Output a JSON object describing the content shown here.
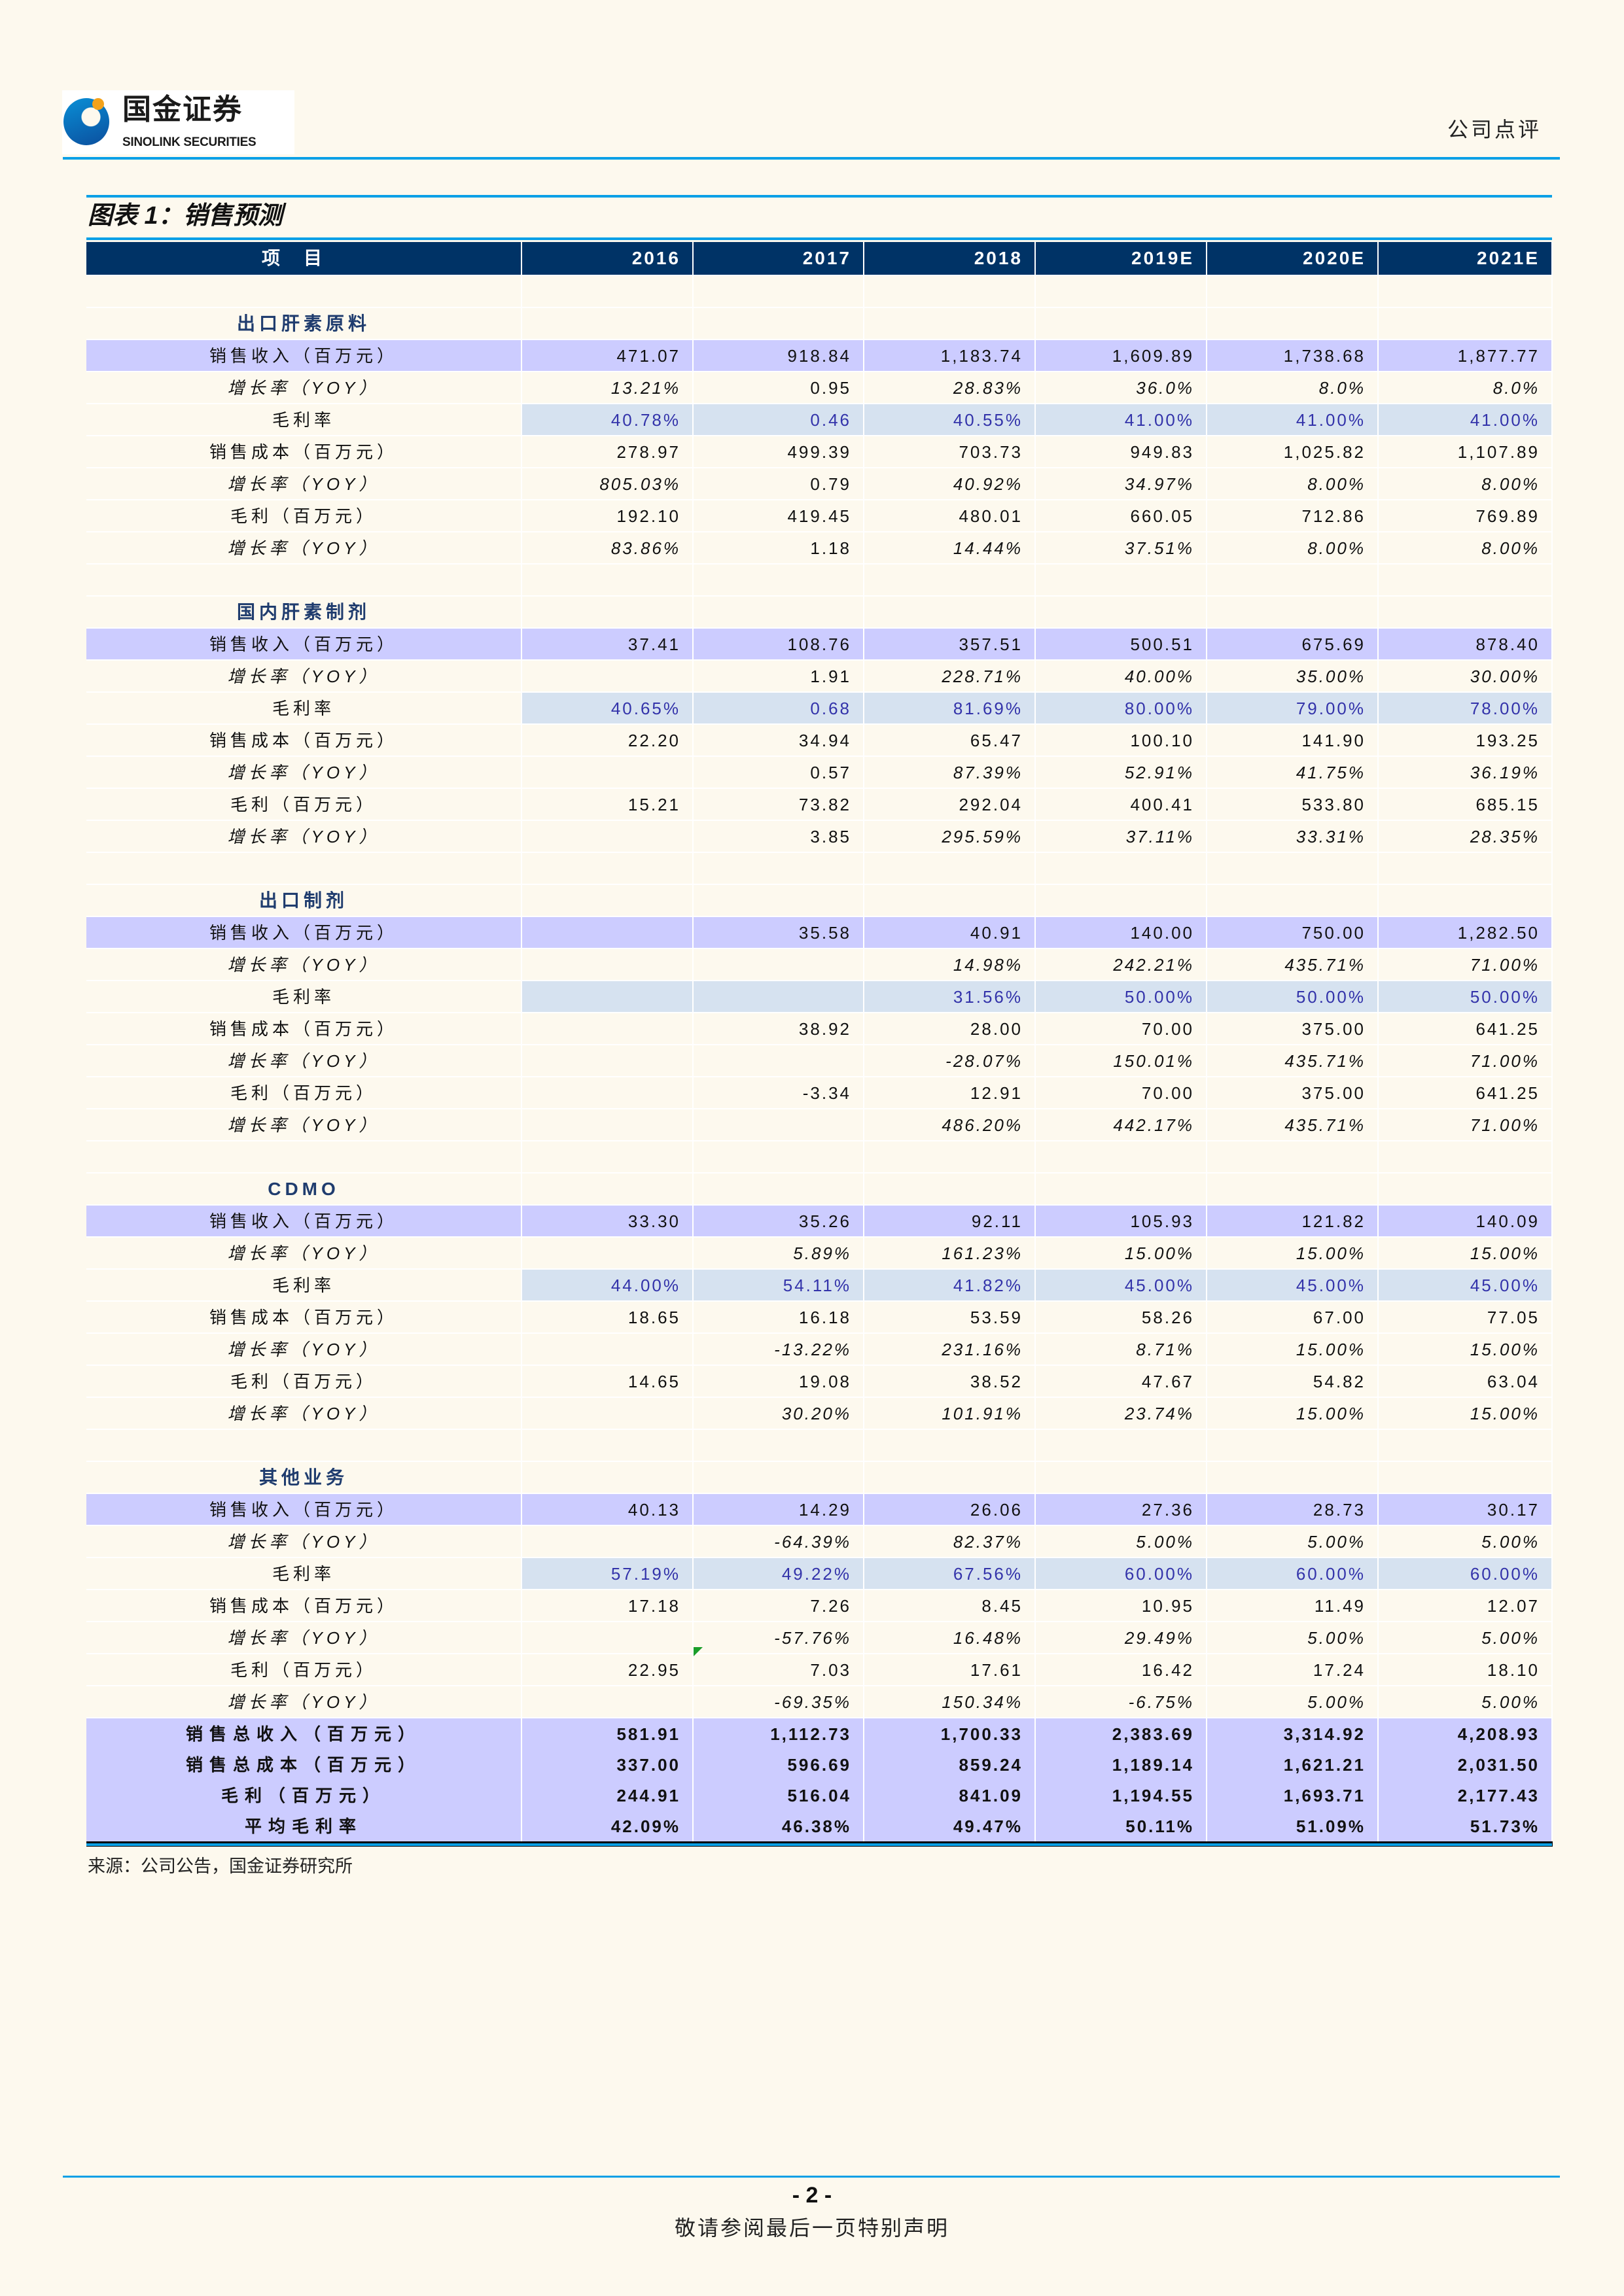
{
  "header": {
    "logo_cn": "国金证券",
    "logo_en": "SINOLINK SECURITIES",
    "doc_type": "公司点评"
  },
  "figure_title": "图表 1：销售预测",
  "table": {
    "columns": [
      "项目",
      "2016",
      "2017",
      "2018",
      "2019E",
      "2020E",
      "2021E"
    ],
    "sections": [
      {
        "title": "出口肝素原料",
        "rows": [
          {
            "label": "销售收入（百万元）",
            "kind": "rev",
            "values": [
              "471.07",
              "918.84",
              "1,183.74",
              "1,609.89",
              "1,738.68",
              "1,877.77"
            ]
          },
          {
            "label": "增长率（YOY）",
            "kind": "yoy",
            "values": [
              "13.21%",
              "0.95",
              "28.83%",
              "36.0%",
              "8.0%",
              "8.0%"
            ]
          },
          {
            "label": "毛利率",
            "kind": "gm",
            "values": [
              "40.78%",
              "0.46",
              "40.55%",
              "41.00%",
              "41.00%",
              "41.00%"
            ]
          },
          {
            "label": "销售成本（百万元）",
            "kind": "n",
            "values": [
              "278.97",
              "499.39",
              "703.73",
              "949.83",
              "1,025.82",
              "1,107.89"
            ]
          },
          {
            "label": "增长率（YOY）",
            "kind": "yoy",
            "values": [
              "805.03%",
              "0.79",
              "40.92%",
              "34.97%",
              "8.00%",
              "8.00%"
            ]
          },
          {
            "label": "毛利（百万元）",
            "kind": "n",
            "values": [
              "192.10",
              "419.45",
              "480.01",
              "660.05",
              "712.86",
              "769.89"
            ]
          },
          {
            "label": "增长率（YOY）",
            "kind": "yoy",
            "values": [
              "83.86%",
              "1.18",
              "14.44%",
              "37.51%",
              "8.00%",
              "8.00%"
            ]
          }
        ]
      },
      {
        "title": "国内肝素制剂",
        "rows": [
          {
            "label": "销售收入（百万元）",
            "kind": "rev",
            "values": [
              "37.41",
              "108.76",
              "357.51",
              "500.51",
              "675.69",
              "878.40"
            ]
          },
          {
            "label": "增长率（YOY）",
            "kind": "yoy",
            "values": [
              "",
              "1.91",
              "228.71%",
              "40.00%",
              "35.00%",
              "30.00%"
            ]
          },
          {
            "label": "毛利率",
            "kind": "gm",
            "values": [
              "40.65%",
              "0.68",
              "81.69%",
              "80.00%",
              "79.00%",
              "78.00%"
            ]
          },
          {
            "label": "销售成本（百万元）",
            "kind": "n",
            "values": [
              "22.20",
              "34.94",
              "65.47",
              "100.10",
              "141.90",
              "193.25"
            ]
          },
          {
            "label": "增长率（YOY）",
            "kind": "yoy",
            "values": [
              "",
              "0.57",
              "87.39%",
              "52.91%",
              "41.75%",
              "36.19%"
            ]
          },
          {
            "label": "毛利（百万元）",
            "kind": "n",
            "values": [
              "15.21",
              "73.82",
              "292.04",
              "400.41",
              "533.80",
              "685.15"
            ]
          },
          {
            "label": "增长率（YOY）",
            "kind": "yoy",
            "values": [
              "",
              "3.85",
              "295.59%",
              "37.11%",
              "33.31%",
              "28.35%"
            ]
          }
        ]
      },
      {
        "title": "出口制剂",
        "rows": [
          {
            "label": "销售收入（百万元）",
            "kind": "rev",
            "values": [
              "",
              "35.58",
              "40.91",
              "140.00",
              "750.00",
              "1,282.50"
            ]
          },
          {
            "label": "增长率（YOY）",
            "kind": "yoy",
            "values": [
              "",
              "",
              "14.98%",
              "242.21%",
              "435.71%",
              "71.00%"
            ]
          },
          {
            "label": "毛利率",
            "kind": "gm",
            "values": [
              "",
              "",
              "31.56%",
              "50.00%",
              "50.00%",
              "50.00%"
            ]
          },
          {
            "label": "销售成本（百万元）",
            "kind": "n",
            "values": [
              "",
              "38.92",
              "28.00",
              "70.00",
              "375.00",
              "641.25"
            ]
          },
          {
            "label": "增长率（YOY）",
            "kind": "yoy",
            "values": [
              "",
              "",
              "-28.07%",
              "150.01%",
              "435.71%",
              "71.00%"
            ]
          },
          {
            "label": "毛利（百万元）",
            "kind": "n",
            "values": [
              "",
              "-3.34",
              "12.91",
              "70.00",
              "375.00",
              "641.25"
            ]
          },
          {
            "label": "增长率（YOY）",
            "kind": "yoy",
            "values": [
              "",
              "",
              "486.20%",
              "442.17%",
              "435.71%",
              "71.00%"
            ]
          }
        ]
      },
      {
        "title": "CDMO",
        "rows": [
          {
            "label": "销售收入（百万元）",
            "kind": "rev",
            "values": [
              "33.30",
              "35.26",
              "92.11",
              "105.93",
              "121.82",
              "140.09"
            ]
          },
          {
            "label": "增长率（YOY）",
            "kind": "yoy",
            "values": [
              "",
              "5.89%",
              "161.23%",
              "15.00%",
              "15.00%",
              "15.00%"
            ]
          },
          {
            "label": "毛利率",
            "kind": "gm",
            "values": [
              "44.00%",
              "54.11%",
              "41.82%",
              "45.00%",
              "45.00%",
              "45.00%"
            ]
          },
          {
            "label": "销售成本（百万元）",
            "kind": "n",
            "values": [
              "18.65",
              "16.18",
              "53.59",
              "58.26",
              "67.00",
              "77.05"
            ]
          },
          {
            "label": "增长率（YOY）",
            "kind": "yoy",
            "values": [
              "",
              "-13.22%",
              "231.16%",
              "8.71%",
              "15.00%",
              "15.00%"
            ]
          },
          {
            "label": "毛利（百万元）",
            "kind": "n",
            "values": [
              "14.65",
              "19.08",
              "38.52",
              "47.67",
              "54.82",
              "63.04"
            ]
          },
          {
            "label": "增长率（YOY）",
            "kind": "yoy",
            "values": [
              "",
              "30.20%",
              "101.91%",
              "23.74%",
              "15.00%",
              "15.00%"
            ]
          }
        ]
      },
      {
        "title": "其他业务",
        "rows": [
          {
            "label": "销售收入（百万元）",
            "kind": "rev",
            "values": [
              "40.13",
              "14.29",
              "26.06",
              "27.36",
              "28.73",
              "30.17"
            ]
          },
          {
            "label": "增长率（YOY）",
            "kind": "yoy",
            "values": [
              "",
              "-64.39%",
              "82.37%",
              "5.00%",
              "5.00%",
              "5.00%"
            ]
          },
          {
            "label": "毛利率",
            "kind": "gm",
            "values": [
              "57.19%",
              "49.22%",
              "67.56%",
              "60.00%",
              "60.00%",
              "60.00%"
            ]
          },
          {
            "label": "销售成本（百万元）",
            "kind": "n",
            "values": [
              "17.18",
              "7.26",
              "8.45",
              "10.95",
              "11.49",
              "12.07"
            ]
          },
          {
            "label": "增长率（YOY）",
            "kind": "yoy",
            "values": [
              "",
              "-57.76%",
              "16.48%",
              "29.49%",
              "5.00%",
              "5.00%"
            ]
          },
          {
            "label": "毛利（百万元）",
            "kind": "n",
            "values": [
              "22.95",
              "7.03",
              "17.61",
              "16.42",
              "17.24",
              "18.10"
            ]
          },
          {
            "label": "增长率（YOY）",
            "kind": "yoy",
            "values": [
              "",
              "-69.35%",
              "150.34%",
              "-6.75%",
              "5.00%",
              "5.00%"
            ]
          }
        ]
      }
    ],
    "totals": [
      {
        "label": "销售总收入（百万元）",
        "values": [
          "581.91",
          "1,112.73",
          "1,700.33",
          "2,383.69",
          "3,314.92",
          "4,208.93"
        ]
      },
      {
        "label": "销售总成本（百万元）",
        "values": [
          "337.00",
          "596.69",
          "859.24",
          "1,189.14",
          "1,621.21",
          "2,031.50"
        ]
      },
      {
        "label": "毛利（百万元）",
        "values": [
          "244.91",
          "516.04",
          "841.09",
          "1,194.55",
          "1,693.71",
          "2,177.43"
        ]
      },
      {
        "label": "平均毛利率",
        "values": [
          "42.09%",
          "46.38%",
          "49.47%",
          "50.11%",
          "51.09%",
          "51.73%"
        ]
      }
    ]
  },
  "source": "来源：公司公告，国金证券研究所",
  "footer": {
    "page_number": "- 2 -",
    "disclaimer": "敬请参阅最后一页特别声明"
  },
  "colors": {
    "header_bg": "#003366",
    "revenue_row": "#CCCCFF",
    "gross_margin_cell": "#D6E2F0",
    "gross_margin_text": "#3333AA",
    "accent_rule": "#0AA0E6",
    "page_bg": "#FDF9EE"
  }
}
